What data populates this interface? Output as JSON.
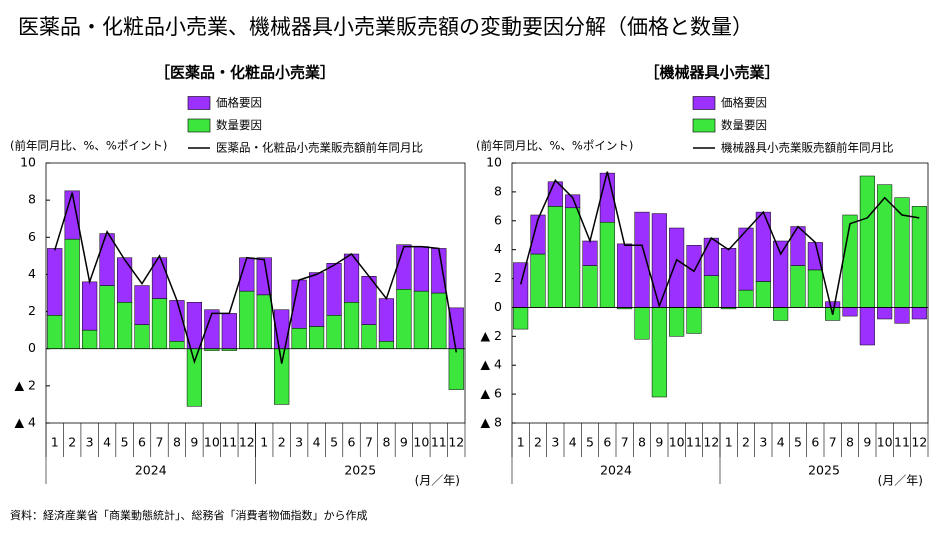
{
  "title": "医薬品・化粧品小売業、機械器具小売業販売額の変動要因分解（価格と数量）",
  "source": "資料：経済産業省「商業動態統計」、総務省「消費者物価指数」から作成",
  "chart_data": [
    {
      "type": "bar",
      "title": "［医薬品・化粧品小売業］",
      "y_label": "(前年同月比、%、%ポイント)",
      "x_unit": "(月／年)",
      "categories": [
        "1",
        "2",
        "3",
        "4",
        "5",
        "6",
        "7",
        "8",
        "9",
        "10",
        "11",
        "12",
        "1",
        "2",
        "3",
        "4",
        "5",
        "6",
        "7",
        "8",
        "9",
        "10",
        "11",
        "12"
      ],
      "years": [
        "2024",
        "2025"
      ],
      "ylim": [
        -4,
        10
      ],
      "yticks": [
        {
          "value": -4,
          "label": "▲ 4"
        },
        {
          "value": -2,
          "label": "▲ 2"
        },
        0,
        2,
        4,
        6,
        8,
        10
      ],
      "series": [
        {
          "name": "価格要因",
          "color": "#9b30ff",
          "values": [
            3.6,
            2.6,
            2.6,
            2.8,
            2.4,
            2.1,
            2.2,
            2.2,
            2.5,
            2.1,
            1.9,
            1.8,
            2.0,
            2.1,
            2.6,
            2.9,
            2.8,
            2.6,
            2.6,
            2.3,
            2.4,
            2.4,
            2.4,
            2.2
          ]
        },
        {
          "name": "数量要因",
          "color": "#3ce63c",
          "values": [
            1.8,
            5.9,
            1.0,
            3.4,
            2.5,
            1.3,
            2.7,
            0.4,
            -3.1,
            -0.1,
            -0.1,
            3.1,
            2.9,
            -3.0,
            1.1,
            1.2,
            1.8,
            2.5,
            1.3,
            0.4,
            3.2,
            3.1,
            3.0,
            -2.2
          ]
        },
        {
          "name": "医薬品・化粧品小売業販売額前年同月比",
          "type": "line",
          "color": "#000000",
          "values": [
            5.3,
            8.4,
            3.6,
            6.3,
            4.8,
            3.5,
            5.0,
            2.6,
            -0.7,
            1.9,
            1.9,
            4.9,
            4.8,
            -0.8,
            3.7,
            4.0,
            4.5,
            5.1,
            3.9,
            2.7,
            5.5,
            5.5,
            5.4,
            -0.2
          ]
        }
      ]
    },
    {
      "type": "bar",
      "title": "［機械器具小売業］",
      "y_label": "(前年同月比、%、%ポイント)",
      "x_unit": "(月／年)",
      "categories": [
        "1",
        "2",
        "3",
        "4",
        "5",
        "6",
        "7",
        "8",
        "9",
        "10",
        "11",
        "12",
        "1",
        "2",
        "3",
        "4",
        "5",
        "6",
        "7",
        "8",
        "9",
        "10",
        "11",
        "12"
      ],
      "years": [
        "2024",
        "2025"
      ],
      "ylim": [
        -8,
        10
      ],
      "yticks": [
        {
          "value": -8,
          "label": "▲ 8"
        },
        {
          "value": -6,
          "label": "▲ 6"
        },
        {
          "value": -4,
          "label": "▲ 4"
        },
        {
          "value": -2,
          "label": "▲ 2"
        },
        0,
        2,
        4,
        6,
        8,
        10
      ],
      "series": [
        {
          "name": "価格要因",
          "color": "#9b30ff",
          "values": [
            3.1,
            2.7,
            1.7,
            0.9,
            1.7,
            3.4,
            4.4,
            6.6,
            6.5,
            5.5,
            4.3,
            2.6,
            4.1,
            4.3,
            4.8,
            4.6,
            2.7,
            1.9,
            0.4,
            -0.6,
            -2.6,
            -0.8,
            -1.1,
            -0.8
          ]
        },
        {
          "name": "数量要因",
          "color": "#3ce63c",
          "values": [
            -1.5,
            3.7,
            7.0,
            6.9,
            2.9,
            5.9,
            -0.1,
            -2.2,
            -6.2,
            -2.0,
            -1.8,
            2.2,
            -0.1,
            1.2,
            1.8,
            -0.9,
            2.9,
            2.6,
            -0.9,
            6.4,
            9.1,
            8.5,
            7.6,
            7.0
          ]
        },
        {
          "name": "機械器具小売業販売額前年同月比",
          "type": "line",
          "color": "#000000",
          "values": [
            1.6,
            6.1,
            8.8,
            7.6,
            4.6,
            9.4,
            4.3,
            4.3,
            0.1,
            3.3,
            2.5,
            4.8,
            4.0,
            5.3,
            6.6,
            3.7,
            5.6,
            4.5,
            -0.5,
            5.8,
            6.2,
            7.6,
            6.4,
            6.2
          ]
        }
      ]
    }
  ]
}
